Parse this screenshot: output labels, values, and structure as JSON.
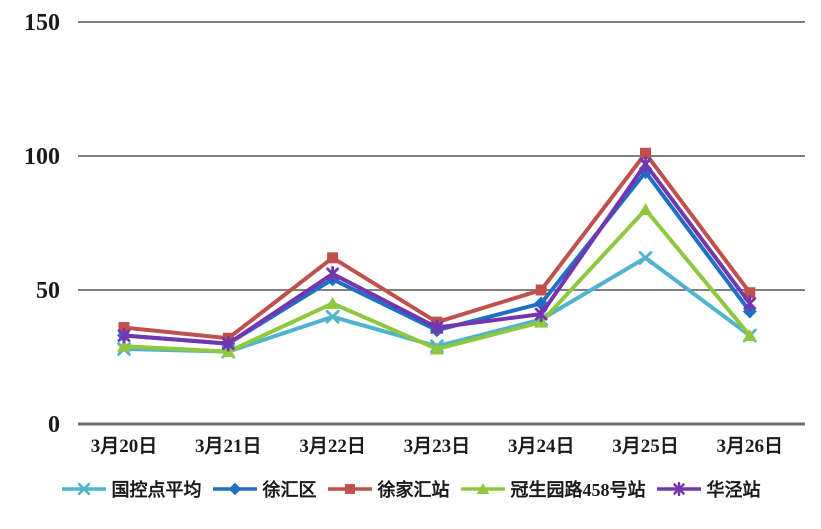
{
  "chart_data": {
    "type": "line",
    "title": "",
    "xlabel": "",
    "ylabel": "",
    "categories": [
      "3月20日",
      "3月21日",
      "3月22日",
      "3月23日",
      "3月24日",
      "3月25日",
      "3月26日"
    ],
    "series": [
      {
        "name": "国控点平均",
        "color": "#4FB3CD",
        "marker": "x",
        "values": [
          28,
          27,
          40,
          29,
          39,
          62,
          33
        ]
      },
      {
        "name": "徐汇区",
        "color": "#1F6FC5",
        "marker": "diamond",
        "values": [
          33,
          30,
          54,
          35,
          45,
          94,
          42
        ]
      },
      {
        "name": "徐家汇站",
        "color": "#C0504D",
        "marker": "square",
        "values": [
          36,
          32,
          62,
          38,
          50,
          101,
          49
        ]
      },
      {
        "name": "冠生园路458号站",
        "color": "#8FC73E",
        "marker": "triangle",
        "values": [
          29,
          27,
          45,
          28,
          38,
          80,
          33
        ]
      },
      {
        "name": "华泾站",
        "color": "#7436AE",
        "marker": "asterisk",
        "values": [
          33,
          30,
          56,
          36,
          41,
          97,
          45
        ]
      }
    ],
    "ylim": [
      0,
      150
    ],
    "yticks": [
      0,
      50,
      100,
      150
    ],
    "grid": true,
    "legend_position": "bottom"
  },
  "style_colors": {
    "gridline": "#808080",
    "axis_line": "#6e6e6e",
    "tick_text": "#1a1a1a",
    "background": "#ffffff"
  }
}
